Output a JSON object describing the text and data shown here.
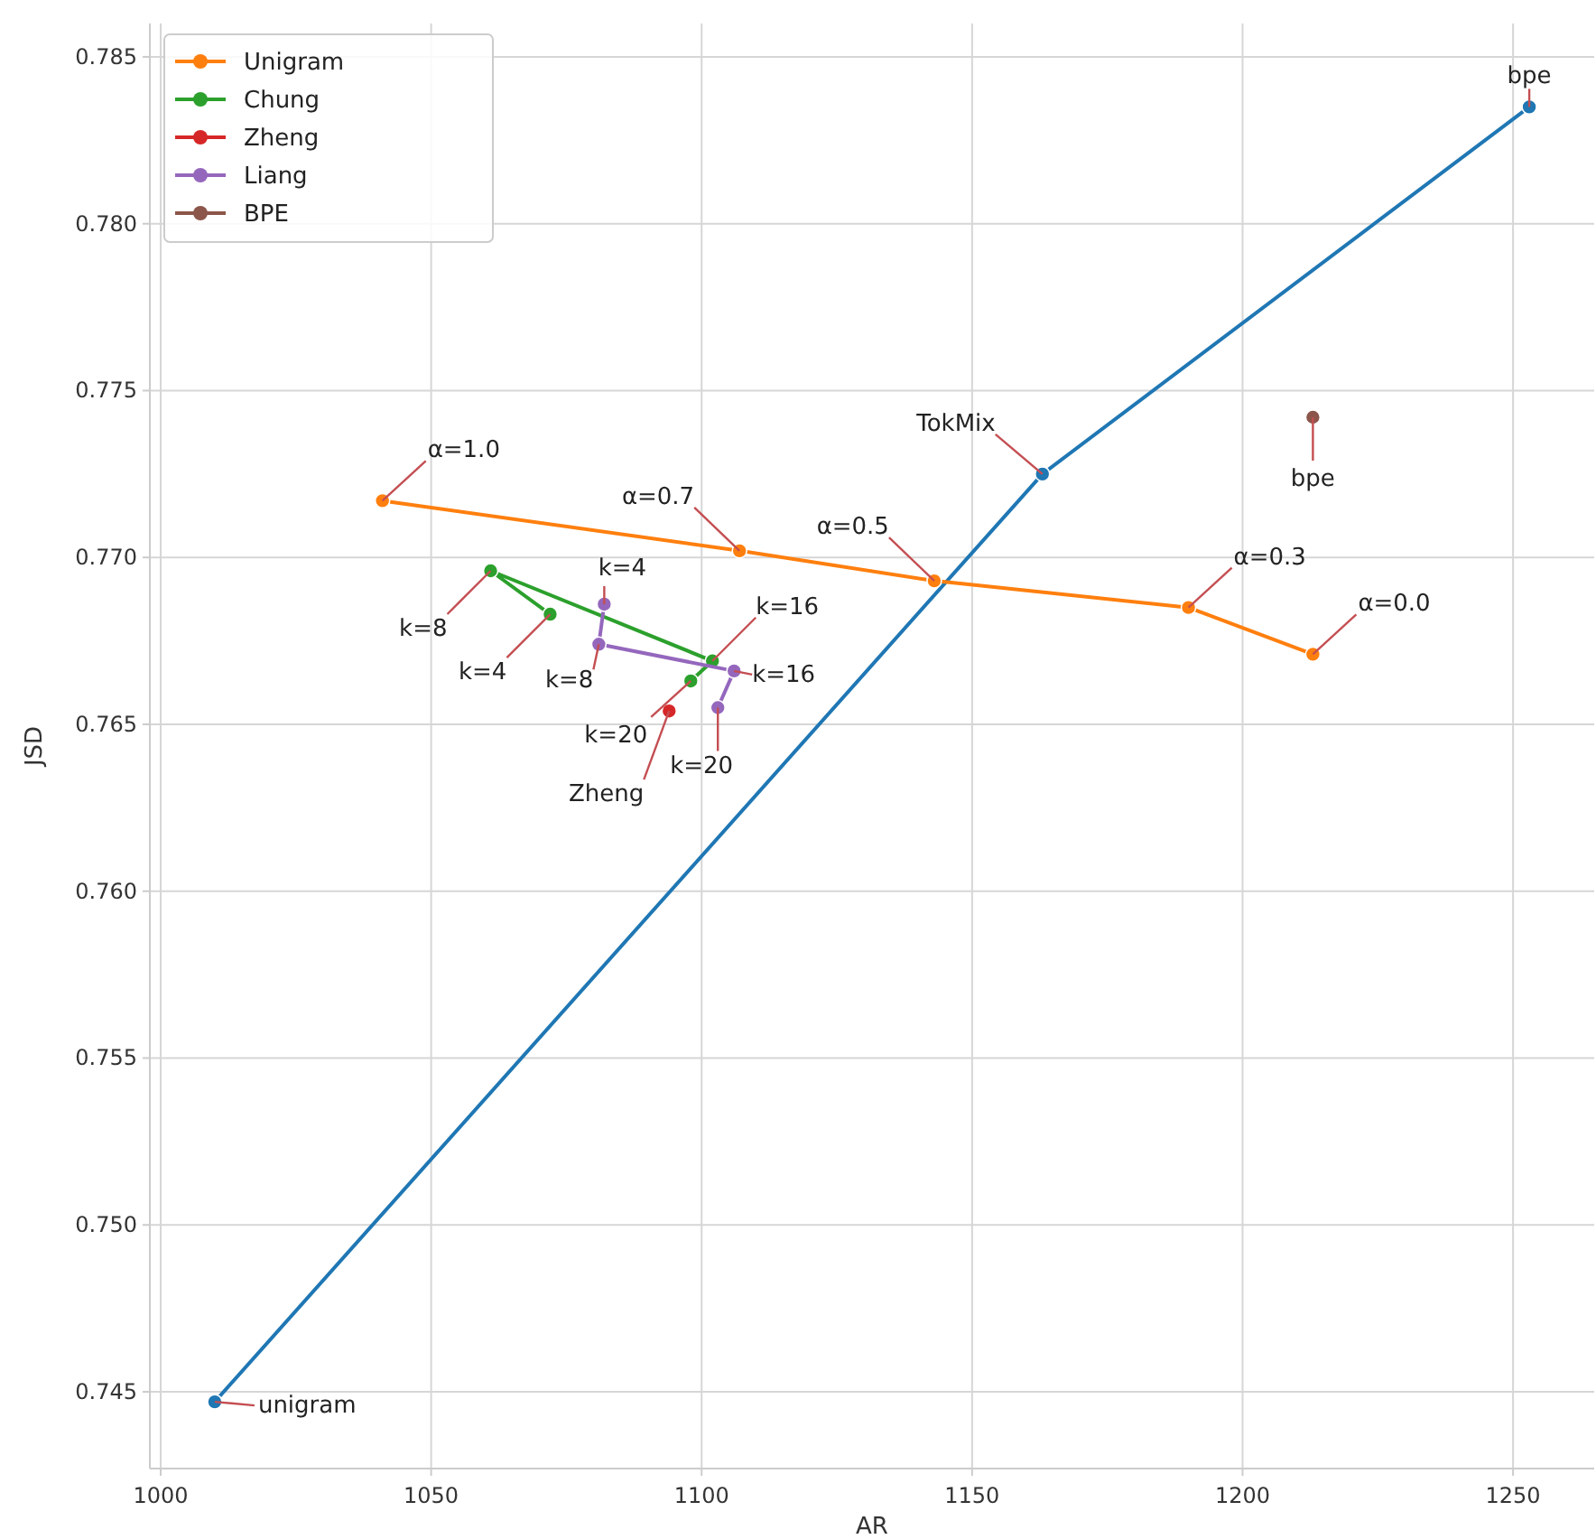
{
  "chart_data": {
    "type": "line",
    "xlabel": "AR",
    "ylabel": "JSD",
    "xlim": [
      998,
      1265
    ],
    "ylim": [
      0.7427,
      0.786
    ],
    "xticks": [
      1000,
      1050,
      1100,
      1150,
      1200,
      1250
    ],
    "yticks": [
      0.745,
      {
        "value": 0.75,
        "label": "0.750"
      },
      0.755,
      {
        "value": 0.76,
        "label": "0.760"
      },
      0.765,
      {
        "value": 0.77,
        "label": "0.770"
      },
      0.775,
      {
        "value": 0.78,
        "label": "0.780"
      },
      0.785
    ],
    "grid": true,
    "legend": "top left",
    "marker": "circle",
    "line_style": "solid",
    "series": [
      {
        "color": "#1f77b4",
        "x": [
          1010,
          1163,
          1253
        ],
        "values": [
          0.7447,
          0.7725,
          0.7835
        ]
      },
      {
        "name": "Unigram",
        "color": "#ff7f0e",
        "x": [
          1041,
          1107,
          1143,
          1190,
          1213
        ],
        "values": [
          0.7717,
          0.7702,
          0.7693,
          0.7685,
          0.7671
        ]
      },
      {
        "name": "Chung",
        "color": "#2ca02c",
        "x": [
          1072,
          1061,
          1102,
          1098
        ],
        "values": [
          0.7683,
          0.7696,
          0.7669,
          0.7663
        ]
      },
      {
        "name": "Zheng",
        "color": "#d62728",
        "x": [
          1094
        ],
        "values": [
          0.7654
        ]
      },
      {
        "name": "Liang",
        "color": "#9467bd",
        "x": [
          1082,
          1081,
          1106,
          1103
        ],
        "values": [
          0.7686,
          0.7674,
          0.7666,
          0.7655
        ]
      },
      {
        "name": "BPE",
        "color": "#8c564b",
        "x": [
          1213
        ],
        "values": [
          0.7742
        ]
      }
    ],
    "annotations": [
      {
        "text": "bpe",
        "x": 1253,
        "y": 0.7835
      },
      {
        "text": "TokMix",
        "x": 1163,
        "y": 0.7725
      },
      {
        "text": "bpe",
        "x": 1213,
        "y": 0.7742
      },
      {
        "text": "unigram",
        "x": 1010,
        "y": 0.7447
      },
      {
        "text": "α=1.0",
        "x": 1041,
        "y": 0.7717
      },
      {
        "text": "α=0.7",
        "x": 1107,
        "y": 0.7702
      },
      {
        "text": "α=0.5",
        "x": 1143,
        "y": 0.7693
      },
      {
        "text": "α=0.3",
        "x": 1190,
        "y": 0.7685
      },
      {
        "text": "α=0.0",
        "x": 1213,
        "y": 0.7671
      },
      {
        "text": "k=8",
        "x": 1061,
        "y": 0.7696
      },
      {
        "text": "k=4",
        "x": 1072,
        "y": 0.7683
      },
      {
        "text": "k=16",
        "x": 1102,
        "y": 0.7669
      },
      {
        "text": "k=20",
        "x": 1098,
        "y": 0.7663
      },
      {
        "text": "Zheng",
        "x": 1094,
        "y": 0.7654
      },
      {
        "text": "k=4",
        "x": 1082,
        "y": 0.7686
      },
      {
        "text": "k=8",
        "x": 1081,
        "y": 0.7674
      },
      {
        "text": "k=16",
        "x": 1106,
        "y": 0.7666
      },
      {
        "text": "k=20",
        "x": 1103,
        "y": 0.7655
      }
    ]
  }
}
